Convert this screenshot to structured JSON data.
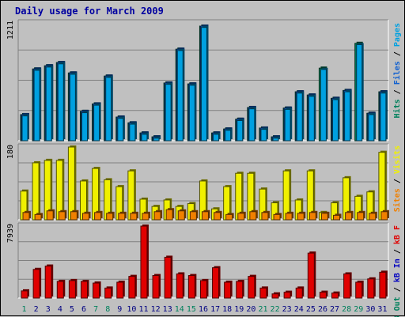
{
  "title": "Daily usage for March 2009",
  "colors": {
    "pages": "#00a0e0",
    "files": "#1060d0",
    "hits": "#00805c",
    "visits": "#f0f000",
    "sites": "#f08000",
    "kb_in": "#e00000",
    "kb_out": "#0000c0",
    "weekend_day": "#00805c",
    "weekday": "#000080",
    "background": "#c0c0c0"
  },
  "chart_data": [
    {
      "type": "bar",
      "panel": "hits-files-pages",
      "categories": [
        "1",
        "2",
        "3",
        "4",
        "5",
        "6",
        "7",
        "8",
        "9",
        "10",
        "11",
        "12",
        "13",
        "14",
        "15",
        "16",
        "17",
        "18",
        "19",
        "20",
        "21",
        "22",
        "23",
        "24",
        "25",
        "26",
        "27",
        "28",
        "29",
        "30",
        "31"
      ],
      "ymax": 1211,
      "ymax_label": "1211",
      "legend": [
        {
          "text": "Pages",
          "color_key": "pages"
        },
        {
          "text": "Files",
          "color_key": "files"
        },
        {
          "text": "Hits",
          "color_key": "hits"
        }
      ],
      "series": [
        {
          "name": "Hits",
          "values": [
            276,
            758,
            792,
            826,
            716,
            310,
            389,
            683,
            250,
            189,
            82,
            41,
            610,
            967,
            600,
            1211,
            82,
            124,
            227,
            351,
            134,
            41,
            345,
            517,
            483,
            767,
            448,
            531,
            1029,
            290,
            517
          ]
        },
        {
          "name": "Files",
          "values": [
            276,
            758,
            792,
            826,
            716,
            310,
            389,
            683,
            250,
            189,
            82,
            41,
            610,
            967,
            600,
            1211,
            82,
            124,
            227,
            351,
            134,
            41,
            345,
            517,
            483,
            0,
            448,
            531,
            0,
            290,
            517
          ]
        },
        {
          "name": "Pages",
          "values": [
            262,
            744,
            778,
            812,
            702,
            296,
            375,
            669,
            236,
            175,
            68,
            27,
            596,
            953,
            586,
            1197,
            68,
            110,
            213,
            337,
            120,
            27,
            331,
            503,
            469,
            753,
            434,
            517,
            1015,
            276,
            503
          ]
        }
      ]
    },
    {
      "type": "bar",
      "panel": "visits-sites",
      "categories": [
        "1",
        "2",
        "3",
        "4",
        "5",
        "6",
        "7",
        "8",
        "9",
        "10",
        "11",
        "12",
        "13",
        "14",
        "15",
        "16",
        "17",
        "18",
        "19",
        "20",
        "21",
        "22",
        "23",
        "24",
        "25",
        "26",
        "27",
        "28",
        "29",
        "30",
        "31"
      ],
      "ymax": 180,
      "ymax_label": "180",
      "legend": [
        {
          "text": "Visits",
          "color_key": "visits"
        },
        {
          "text": "Sites",
          "color_key": "sites"
        }
      ],
      "series": [
        {
          "name": "Visits",
          "values": [
            71,
            141,
            147,
            147,
            180,
            96,
            127,
            99,
            82,
            121,
            51,
            33,
            49,
            33,
            40,
            96,
            27,
            82,
            115,
            115,
            76,
            42,
            121,
            49,
            121,
            18,
            42,
            104,
            58,
            69,
            167
          ]
        },
        {
          "name": "Sites",
          "values": [
            18,
            13,
            22,
            20,
            20,
            16,
            18,
            16,
            16,
            16,
            16,
            20,
            25,
            22,
            20,
            20,
            18,
            13,
            16,
            20,
            18,
            13,
            16,
            16,
            18,
            16,
            11,
            18,
            18,
            16,
            20
          ]
        }
      ]
    },
    {
      "type": "bar",
      "panel": "kbf",
      "categories": [
        "1",
        "2",
        "3",
        "4",
        "5",
        "6",
        "7",
        "8",
        "9",
        "10",
        "11",
        "12",
        "13",
        "14",
        "15",
        "16",
        "17",
        "18",
        "19",
        "20",
        "21",
        "22",
        "23",
        "24",
        "25",
        "26",
        "27",
        "28",
        "29",
        "30",
        "31"
      ],
      "ymax": 7939,
      "ymax_label": "7939",
      "legend": [
        {
          "text": "kB F",
          "color_key": "kb_in"
        },
        {
          "text": "kB In",
          "color_key": "kb_out"
        },
        {
          "text": "kB Out",
          "color_key": "hits"
        }
      ],
      "series": [
        {
          "name": "kB F",
          "values": [
            794,
            3162,
            3529,
            1838,
            1929,
            1838,
            1654,
            1103,
            1746,
            2390,
            7939,
            2482,
            4501,
            2665,
            2482,
            1929,
            3347,
            1746,
            1838,
            2390,
            1103,
            460,
            643,
            1103,
            4960,
            643,
            551,
            2665,
            1746,
            2114,
            2849
          ]
        }
      ]
    }
  ],
  "weekend_days": [
    "1",
    "7",
    "8",
    "14",
    "15",
    "21",
    "22",
    "28",
    "29"
  ]
}
